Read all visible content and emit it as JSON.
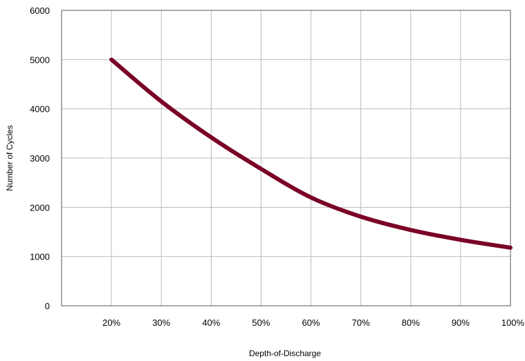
{
  "chart_data": {
    "type": "line",
    "title": "",
    "xlabel": "Depth-of-Discharge",
    "ylabel": "Number of Cycles",
    "x_categories": [
      "20%",
      "30%",
      "40%",
      "50%",
      "60%",
      "70%",
      "80%",
      "90%",
      "100%"
    ],
    "x_values": [
      20,
      30,
      40,
      50,
      60,
      70,
      80,
      90,
      100
    ],
    "xlim": [
      10,
      100
    ],
    "ylim": [
      0,
      6000
    ],
    "y_ticks": [
      0,
      1000,
      2000,
      3000,
      4000,
      5000,
      6000
    ],
    "y_tick_labels": [
      "0",
      "1000",
      "2000",
      "3000",
      "4000",
      "5000",
      "6000"
    ],
    "grid": true,
    "legend": "none",
    "series": [
      {
        "values": [
          5000,
          4150,
          3420,
          2780,
          2200,
          1810,
          1540,
          1340,
          1180
        ],
        "color": "#7a0026"
      }
    ],
    "colors": {
      "grid": "#bbbbbb",
      "axis": "#555555",
      "shadow": "#b0b0b0"
    }
  }
}
